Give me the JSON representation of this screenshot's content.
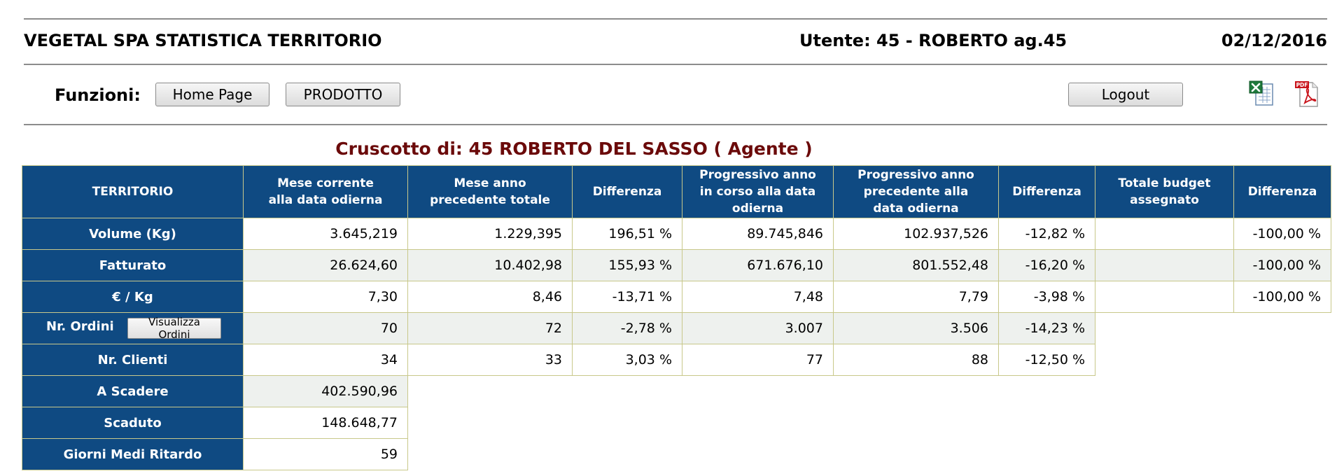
{
  "header": {
    "app_title": "VEGETAL SPA STATISTICA TERRITORIO",
    "user": "Utente: 45 - ROBERTO ag.45",
    "date": "02/12/2016"
  },
  "toolbar": {
    "funzioni_label": "Funzioni:",
    "home_label": "Home Page",
    "prodotto_label": "PRODOTTO",
    "logout_label": "Logout",
    "excel_icon": "excel-icon",
    "pdf_icon": "pdf-icon",
    "pdf_badge": "PDF"
  },
  "dashboard": {
    "title": "Cruscotto di: 45 ROBERTO DEL SASSO ( Agente )",
    "columns": [
      "TERRITORIO",
      "Mese corrente alla data odierna",
      "Mese anno precedente totale",
      "Differenza",
      "Progressivo anno in corso alla data odierna",
      "Progressivo anno precedente alla data odierna",
      "Differenza",
      "Totale budget assegnato",
      "Differenza"
    ],
    "column_lines": [
      [
        "TERRITORIO"
      ],
      [
        "Mese corrente",
        "alla data odierna"
      ],
      [
        "Mese anno",
        "precedente totale"
      ],
      [
        "Differenza"
      ],
      [
        "Progressivo anno",
        "in corso alla data",
        "odierna"
      ],
      [
        "Progressivo anno",
        "precedente alla",
        "data odierna"
      ],
      [
        "Differenza"
      ],
      [
        "Totale budget",
        "assegnato"
      ],
      [
        "Differenza"
      ]
    ],
    "visualizza_label": "Visualizza Ordini",
    "rows": [
      {
        "label": "Volume (Kg)",
        "cells": [
          "3.645,219",
          "1.229,395",
          "196,51 %",
          "89.745,846",
          "102.937,526",
          "-12,82 %",
          "",
          "-100,00 %"
        ]
      },
      {
        "label": "Fatturato",
        "cells": [
          "26.624,60",
          "10.402,98",
          "155,93 %",
          "671.676,10",
          "801.552,48",
          "-16,20 %",
          "",
          "-100,00 %"
        ]
      },
      {
        "label": "€ / Kg",
        "cells": [
          "7,30",
          "8,46",
          "-13,71 %",
          "7,48",
          "7,79",
          "-3,98 %",
          "",
          "-100,00 %"
        ]
      },
      {
        "label": "Nr. Ordini",
        "cells": [
          "70",
          "72",
          "-2,78 %",
          "3.007",
          "3.506",
          "-14,23 %"
        ]
      },
      {
        "label": "Nr. Clienti",
        "cells": [
          "34",
          "33",
          "3,03 %",
          "77",
          "88",
          "-12,50 %"
        ]
      },
      {
        "label": "A Scadere",
        "cells": [
          "402.590,96"
        ]
      },
      {
        "label": "Scaduto",
        "cells": [
          "148.648,77"
        ]
      },
      {
        "label": "Giorni Medi Ritardo",
        "cells": [
          "59"
        ]
      }
    ]
  },
  "colors": {
    "header_blue": "#0f4a82",
    "title_red": "#6b0a0a",
    "grid_border": "#c8c88a",
    "alt_row": "#eef1ee"
  }
}
